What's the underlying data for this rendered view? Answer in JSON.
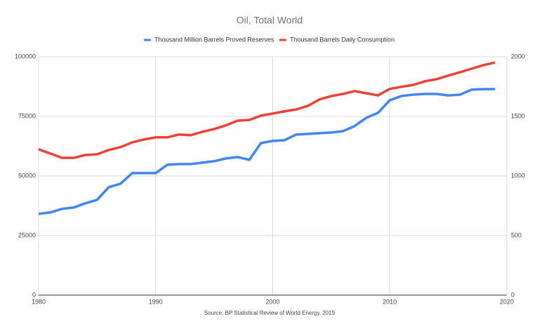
{
  "chart_data": {
    "type": "line",
    "title": "Oil, Total World",
    "source": "Source: BP Statistical Review of World Energy, 2019",
    "x": [
      1980,
      1981,
      1982,
      1983,
      1984,
      1985,
      1986,
      1987,
      1988,
      1989,
      1990,
      1991,
      1992,
      1993,
      1994,
      1995,
      1996,
      1997,
      1998,
      1999,
      2000,
      2001,
      2002,
      2003,
      2004,
      2005,
      2006,
      2007,
      2008,
      2009,
      2010,
      2011,
      2012,
      2013,
      2014,
      2015,
      2016,
      2017,
      2018,
      2019
    ],
    "series": [
      {
        "name": "Thousand Million Barrels Proved Reserves",
        "color": "#4285f4",
        "axis": "y2",
        "values": [
          682,
          694,
          724,
          735,
          771,
          800,
          906,
          935,
          1024,
          1024,
          1024,
          1094,
          1100,
          1100,
          1112,
          1124,
          1147,
          1159,
          1135,
          1276,
          1294,
          1300,
          1347,
          1353,
          1359,
          1365,
          1376,
          1418,
          1488,
          1529,
          1635,
          1671,
          1682,
          1688,
          1688,
          1676,
          1682,
          1724,
          1729,
          1729
        ]
      },
      {
        "name": "Thousand Barrels Daily Consumption",
        "color": "#ea4335",
        "values": [
          61200,
          59400,
          57600,
          57600,
          58800,
          59100,
          60900,
          62100,
          64100,
          65300,
          66200,
          66200,
          67400,
          67100,
          68500,
          69700,
          71200,
          73200,
          73500,
          75300,
          76200,
          77100,
          77900,
          79400,
          82100,
          83500,
          84400,
          85600,
          84700,
          83800,
          86500,
          87400,
          88200,
          89700,
          90600,
          92100,
          93500,
          95000,
          96500,
          97600
        ]
      }
    ],
    "xlim": [
      1980,
      2020
    ],
    "xticks": [
      1980,
      1990,
      2000,
      2010,
      2020
    ],
    "ylim": [
      0,
      100000
    ],
    "yticks": [
      0,
      25000,
      50000,
      75000,
      100000
    ],
    "y2lim": [
      0,
      2000
    ],
    "y2ticks": [
      0,
      500,
      1000,
      1500,
      2000
    ],
    "grid": true
  }
}
